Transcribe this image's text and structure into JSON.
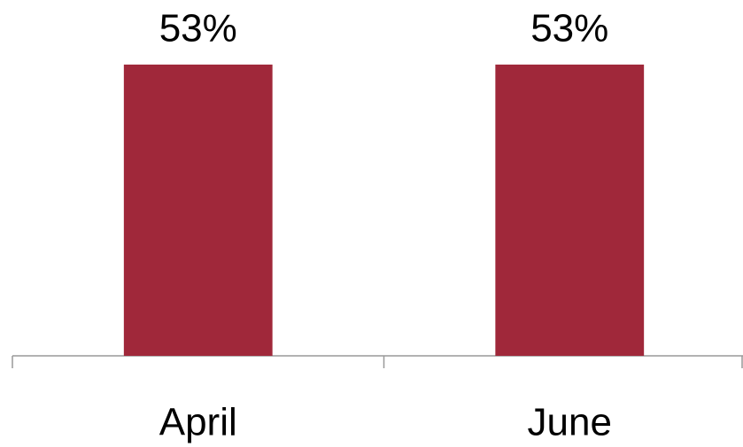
{
  "chart_data": {
    "type": "bar",
    "categories": [
      "April",
      "June"
    ],
    "values": [
      53,
      53
    ],
    "value_labels": [
      "53%",
      "53%"
    ],
    "color": "#a0283a",
    "ylim": [
      0,
      60
    ]
  }
}
